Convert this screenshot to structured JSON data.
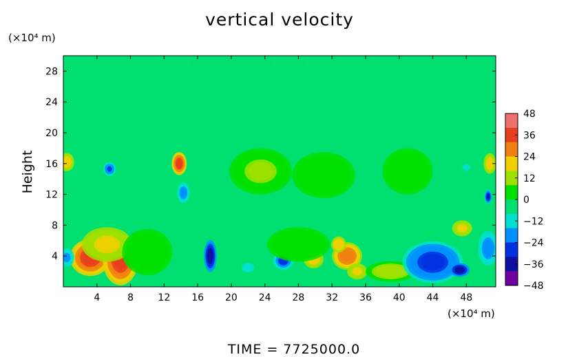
{
  "chart_data": {
    "type": "heatmap",
    "title": "vertical velocity",
    "ylabel": "Height",
    "xlabel": "",
    "x_unit": "(×10⁴ m)",
    "y_unit": "(×10⁴ m)",
    "xlim": [
      0,
      51.5
    ],
    "ylim": [
      0,
      30
    ],
    "x_ticks": [
      4,
      8,
      12,
      16,
      20,
      24,
      28,
      32,
      36,
      40,
      44,
      48
    ],
    "x_tick_labels": [
      "4",
      "8",
      "12",
      "16",
      "20",
      "24",
      "28",
      "32",
      "36",
      "40",
      "44",
      "48"
    ],
    "y_ticks": [
      4,
      8,
      12,
      16,
      20,
      24,
      28
    ],
    "y_tick_labels": [
      "4",
      "8",
      "12",
      "16",
      "20",
      "24",
      "28"
    ],
    "colorbar": {
      "range": [
        -48,
        48
      ],
      "ticks": [
        48,
        36,
        24,
        12,
        0,
        -12,
        -24,
        -36,
        -48
      ],
      "tick_labels": [
        "48",
        "36",
        "24",
        "12",
        "0",
        "−12",
        "−24",
        "−36",
        "−48"
      ],
      "colors": [
        "#f07070",
        "#e63e1e",
        "#f08010",
        "#f0d000",
        "#a0e000",
        "#00e000",
        "#00e070",
        "#00e0d0",
        "#0090ff",
        "#0030e0",
        "#1010a0",
        "#7000a0"
      ]
    },
    "background_value": 0,
    "features": [
      {
        "x": 3.2,
        "y": 3.8,
        "value": 40,
        "sx": 1.6,
        "sy": 1.6
      },
      {
        "x": 6.8,
        "y": 3.5,
        "value": 38,
        "sx": 1.4,
        "sy": 2.2
      },
      {
        "x": 5.2,
        "y": 5.5,
        "value": 20,
        "sx": 2.0,
        "sy": 1.5
      },
      {
        "x": 13.8,
        "y": 16.0,
        "value": 40,
        "sx": 0.6,
        "sy": 1.0
      },
      {
        "x": 14.3,
        "y": 12.2,
        "value": -22,
        "sx": 0.5,
        "sy": 0.9
      },
      {
        "x": 17.5,
        "y": 4.0,
        "value": -38,
        "sx": 0.5,
        "sy": 1.4
      },
      {
        "x": 5.5,
        "y": 15.3,
        "value": -24,
        "sx": 0.5,
        "sy": 0.6
      },
      {
        "x": 0.4,
        "y": 16.2,
        "value": 22,
        "sx": 0.6,
        "sy": 0.8
      },
      {
        "x": 0.4,
        "y": 3.8,
        "value": -20,
        "sx": 0.6,
        "sy": 0.8
      },
      {
        "x": 26.2,
        "y": 3.4,
        "value": -28,
        "sx": 0.8,
        "sy": 0.8
      },
      {
        "x": 22.0,
        "y": 2.5,
        "value": -10,
        "sx": 1.0,
        "sy": 0.8
      },
      {
        "x": 29.8,
        "y": 3.6,
        "value": 22,
        "sx": 0.8,
        "sy": 0.8
      },
      {
        "x": 33.8,
        "y": 4.0,
        "value": 32,
        "sx": 1.2,
        "sy": 1.2
      },
      {
        "x": 32.8,
        "y": 5.5,
        "value": 24,
        "sx": 0.6,
        "sy": 0.7
      },
      {
        "x": 35.0,
        "y": 2.0,
        "value": 20,
        "sx": 0.8,
        "sy": 0.7
      },
      {
        "x": 39.0,
        "y": 2.0,
        "value": 14,
        "sx": 2.0,
        "sy": 0.9
      },
      {
        "x": 44.0,
        "y": 3.2,
        "value": -30,
        "sx": 2.4,
        "sy": 1.8
      },
      {
        "x": 47.2,
        "y": 2.2,
        "value": -38,
        "sx": 0.8,
        "sy": 0.6
      },
      {
        "x": 50.6,
        "y": 5.0,
        "value": -22,
        "sx": 0.8,
        "sy": 1.5
      },
      {
        "x": 47.5,
        "y": 7.6,
        "value": 20,
        "sx": 0.8,
        "sy": 0.7
      },
      {
        "x": 50.8,
        "y": 16.0,
        "value": 22,
        "sx": 0.5,
        "sy": 0.9
      },
      {
        "x": 50.6,
        "y": 11.7,
        "value": -34,
        "sx": 0.3,
        "sy": 0.6
      },
      {
        "x": 23.5,
        "y": 15.0,
        "value": 9,
        "sx": 2.5,
        "sy": 2.0
      },
      {
        "x": 31.0,
        "y": 14.5,
        "value": 8,
        "sx": 2.5,
        "sy": 2.0
      },
      {
        "x": 41.0,
        "y": 15.0,
        "value": 7,
        "sx": 2.0,
        "sy": 2.0
      },
      {
        "x": 48.0,
        "y": 15.5,
        "value": -9,
        "sx": 0.6,
        "sy": 0.6
      },
      {
        "x": 10.0,
        "y": 4.5,
        "value": 8,
        "sx": 2.0,
        "sy": 2.0
      },
      {
        "x": 28.0,
        "y": 5.5,
        "value": 8,
        "sx": 2.5,
        "sy": 1.5
      }
    ]
  },
  "footer": {
    "time_label": "TIME",
    "time_eq": " = ",
    "time_value": "7725000.0"
  }
}
